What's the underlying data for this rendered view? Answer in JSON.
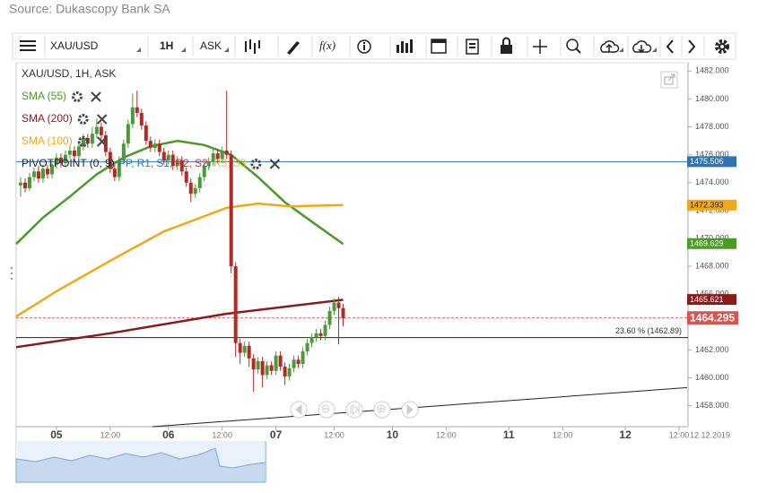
{
  "source": "Source: Dukascopy Bank SA",
  "toolbar": {
    "symbol": "XAU/USD",
    "period": "1H",
    "side": "ASK",
    "function": "f(x)"
  },
  "chart_data": {
    "type": "candlestick",
    "title": "XAU/USD, 1H, ASK",
    "xlim": [
      -9,
      141
    ],
    "ylim": [
      1456.5,
      1482.6
    ],
    "yticks": [
      {
        "value": 1482,
        "label": "1482.000"
      },
      {
        "value": 1480,
        "label": "1480.000"
      },
      {
        "value": 1478,
        "label": "1478.000"
      },
      {
        "value": 1476,
        "label": "1476.000"
      },
      {
        "value": 1474,
        "label": "1474.000"
      },
      {
        "value": 1472,
        "label": "1472.000"
      },
      {
        "value": 1470,
        "label": "1470.000"
      },
      {
        "value": 1468,
        "label": "1468.000"
      },
      {
        "value": 1466,
        "label": "1466.000"
      },
      {
        "value": 1464,
        "label": "1464.000"
      },
      {
        "value": 1462,
        "label": "1462.000"
      },
      {
        "value": 1460,
        "label": "1460.000"
      },
      {
        "value": 1458,
        "label": "1458.000"
      }
    ],
    "xticks": [
      {
        "value": 0,
        "label": "05"
      },
      {
        "value": 12,
        "label": "12:00"
      },
      {
        "value": 25,
        "label": "06"
      },
      {
        "value": 37,
        "label": "12:00"
      },
      {
        "value": 49,
        "label": "07"
      },
      {
        "value": 62,
        "label": "12:00"
      },
      {
        "value": 75,
        "label": "10"
      },
      {
        "value": 87,
        "label": "12:00"
      },
      {
        "value": 101,
        "label": "11"
      },
      {
        "value": 113,
        "label": "12:00"
      },
      {
        "value": 127,
        "label": "12"
      },
      {
        "value": 139,
        "label": "12:00"
      }
    ],
    "date_label": "12.12.2019",
    "up_color": "#4a9a3a",
    "down_color": "#b22a22",
    "candles": {
      "x": [
        -8,
        -7,
        -6,
        -5,
        -4,
        -3,
        -2,
        -1,
        0,
        1,
        2,
        3,
        4,
        5,
        6,
        7,
        8,
        9,
        10,
        11,
        12,
        13,
        14,
        15,
        16,
        17,
        18,
        19,
        20,
        21,
        22,
        23,
        24,
        25,
        26,
        27,
        28,
        29,
        30,
        31,
        32,
        33,
        34,
        35,
        36,
        37,
        38,
        39,
        40,
        41,
        42,
        43,
        44,
        45,
        46,
        47,
        48,
        49,
        50,
        51,
        52,
        53,
        54,
        55,
        56,
        57,
        58,
        59,
        60,
        61,
        62,
        63,
        64
      ],
      "open": [
        1473.8,
        1474.0,
        1473.6,
        1474.4,
        1474.8,
        1474.3,
        1475.0,
        1474.6,
        1475.3,
        1475.8,
        1475.4,
        1476.0,
        1476.3,
        1475.9,
        1476.6,
        1477.2,
        1476.8,
        1477.5,
        1478.0,
        1477.4,
        1476.2,
        1475.0,
        1474.4,
        1475.6,
        1476.8,
        1478.2,
        1479.4,
        1479.0,
        1478.1,
        1477.0,
        1476.5,
        1476.8,
        1476.2,
        1475.6,
        1476.0,
        1475.2,
        1475.6,
        1474.8,
        1474.0,
        1473.2,
        1473.6,
        1474.4,
        1475.2,
        1475.5,
        1476.1,
        1475.7,
        1476.3,
        1476.0,
        1468.0,
        1462.5,
        1461.8,
        1462.3,
        1461.4,
        1460.6,
        1461.2,
        1460.2,
        1460.9,
        1460.5,
        1461.6,
        1460.8,
        1460.1,
        1460.7,
        1461.3,
        1461.0,
        1461.9,
        1462.5,
        1462.9,
        1463.2,
        1463.0,
        1463.8,
        1464.8,
        1465.4,
        1465.0
      ],
      "high": [
        1474.4,
        1474.3,
        1474.7,
        1475.1,
        1475.2,
        1475.3,
        1475.3,
        1475.6,
        1476.1,
        1476.1,
        1476.3,
        1476.6,
        1476.6,
        1476.9,
        1477.5,
        1477.5,
        1478.0,
        1478.6,
        1478.3,
        1477.7,
        1476.5,
        1475.3,
        1475.9,
        1477.1,
        1478.5,
        1480.4,
        1480.6,
        1479.3,
        1478.4,
        1477.3,
        1477.1,
        1477.1,
        1476.5,
        1476.3,
        1476.3,
        1475.9,
        1475.9,
        1475.1,
        1474.3,
        1473.9,
        1474.7,
        1475.5,
        1475.8,
        1476.4,
        1476.4,
        1476.6,
        1480.6,
        1476.3,
        1468.3,
        1462.8,
        1462.6,
        1462.6,
        1461.7,
        1461.5,
        1461.5,
        1461.2,
        1461.2,
        1461.9,
        1461.9,
        1461.1,
        1461.0,
        1461.6,
        1461.6,
        1462.2,
        1462.8,
        1463.2,
        1463.5,
        1463.5,
        1464.1,
        1465.1,
        1465.7,
        1465.8,
        1465.3
      ],
      "low": [
        1473.0,
        1473.3,
        1473.4,
        1474.1,
        1474.0,
        1474.0,
        1474.3,
        1474.3,
        1475.0,
        1475.1,
        1475.1,
        1475.7,
        1475.6,
        1475.6,
        1476.3,
        1476.5,
        1476.5,
        1477.2,
        1477.1,
        1475.9,
        1474.7,
        1474.1,
        1474.1,
        1475.3,
        1476.5,
        1477.9,
        1478.7,
        1477.8,
        1476.7,
        1476.2,
        1476.2,
        1475.9,
        1475.3,
        1475.3,
        1474.9,
        1474.9,
        1474.5,
        1473.7,
        1472.6,
        1472.9,
        1473.3,
        1474.1,
        1474.9,
        1475.2,
        1475.4,
        1475.4,
        1475.7,
        1467.5,
        1461.5,
        1461.0,
        1461.5,
        1460.8,
        1459.0,
        1460.3,
        1459.3,
        1459.9,
        1460.2,
        1460.2,
        1460.5,
        1459.5,
        1459.8,
        1460.4,
        1460.7,
        1460.7,
        1461.6,
        1462.2,
        1462.6,
        1462.7,
        1462.7,
        1463.5,
        1464.5,
        1462.4,
        1463.7
      ],
      "close": [
        1474.0,
        1473.6,
        1474.4,
        1474.8,
        1474.3,
        1475.0,
        1474.6,
        1475.3,
        1475.8,
        1475.4,
        1476.0,
        1476.3,
        1475.9,
        1476.6,
        1477.2,
        1476.8,
        1477.5,
        1478.0,
        1477.4,
        1476.2,
        1475.0,
        1474.4,
        1475.6,
        1476.8,
        1478.2,
        1479.4,
        1479.0,
        1478.1,
        1477.0,
        1476.5,
        1476.8,
        1476.2,
        1475.6,
        1476.0,
        1475.2,
        1475.6,
        1474.8,
        1474.0,
        1473.2,
        1473.6,
        1474.4,
        1475.2,
        1475.5,
        1476.1,
        1475.7,
        1476.3,
        1476.0,
        1468.0,
        1462.5,
        1461.8,
        1462.3,
        1461.4,
        1460.6,
        1461.2,
        1460.2,
        1460.9,
        1460.5,
        1461.6,
        1460.8,
        1460.1,
        1460.7,
        1461.3,
        1461.0,
        1461.9,
        1462.5,
        1462.9,
        1463.2,
        1463.0,
        1463.8,
        1464.8,
        1465.4,
        1465.0,
        1464.3
      ]
    },
    "series": [
      {
        "name": "SMA (55)",
        "color": "#4a9a28",
        "x": [
          -9,
          -3,
          3,
          9,
          15,
          21,
          27,
          33,
          39,
          45,
          51,
          57,
          64
        ],
        "values": [
          1469.6,
          1471.5,
          1473.0,
          1474.6,
          1475.8,
          1476.6,
          1477.0,
          1476.7,
          1476.0,
          1474.4,
          1472.6,
          1471.2,
          1469.6
        ]
      },
      {
        "name": "SMA (200)",
        "color": "#8b1a1a",
        "x": [
          -9,
          12,
          38,
          64
        ],
        "values": [
          1462.2,
          1463.2,
          1464.6,
          1465.6
        ]
      },
      {
        "name": "SMA (100)",
        "color": "#f0a818",
        "x": [
          -9,
          0,
          12,
          24,
          38,
          45,
          52,
          64
        ],
        "values": [
          1464.4,
          1466.2,
          1468.4,
          1470.5,
          1472.2,
          1472.5,
          1472.3,
          1472.4
        ]
      }
    ],
    "pivot": {
      "name": "PIVOTPOINT (0, 9)",
      "value": 1475.506,
      "color": "#2e75b6",
      "items": [
        {
          "name": "PP,",
          "color": "#2e75b6"
        },
        {
          "name": "R1,",
          "color": "#2e75b6"
        },
        {
          "name": "S1,",
          "color": "#2e75b6"
        },
        {
          "name": "R2,",
          "color": "#d03030"
        },
        {
          "name": "S2,",
          "color": "#d03030"
        },
        {
          "name": "R3,",
          "color": "#e8c020"
        },
        {
          "name": "S3",
          "color": "#e8c020"
        }
      ]
    },
    "last_price": {
      "value": 1464.295,
      "color": "#d9534f"
    },
    "fibonacci": {
      "value": 1462.89,
      "label": "23.60 % (1462.89)"
    },
    "trendline": {
      "x": [
        21.4,
        140.8
      ],
      "values": [
        1456.5,
        1459.3
      ]
    },
    "price_tags": [
      {
        "value": 1475.506,
        "color": "#2e75b6",
        "text_color": "#ffffff"
      },
      {
        "value": 1472.393,
        "color": "#f0a818",
        "text_color": "#222222"
      },
      {
        "value": 1469.629,
        "color": "#4a9a28",
        "text_color": "#ffffff"
      },
      {
        "value": 1465.621,
        "color": "#8b1a1a",
        "text_color": "#ffffff"
      },
      {
        "value": 1464.295,
        "color": "#d9534f",
        "text_color": "#ffffff"
      }
    ]
  }
}
